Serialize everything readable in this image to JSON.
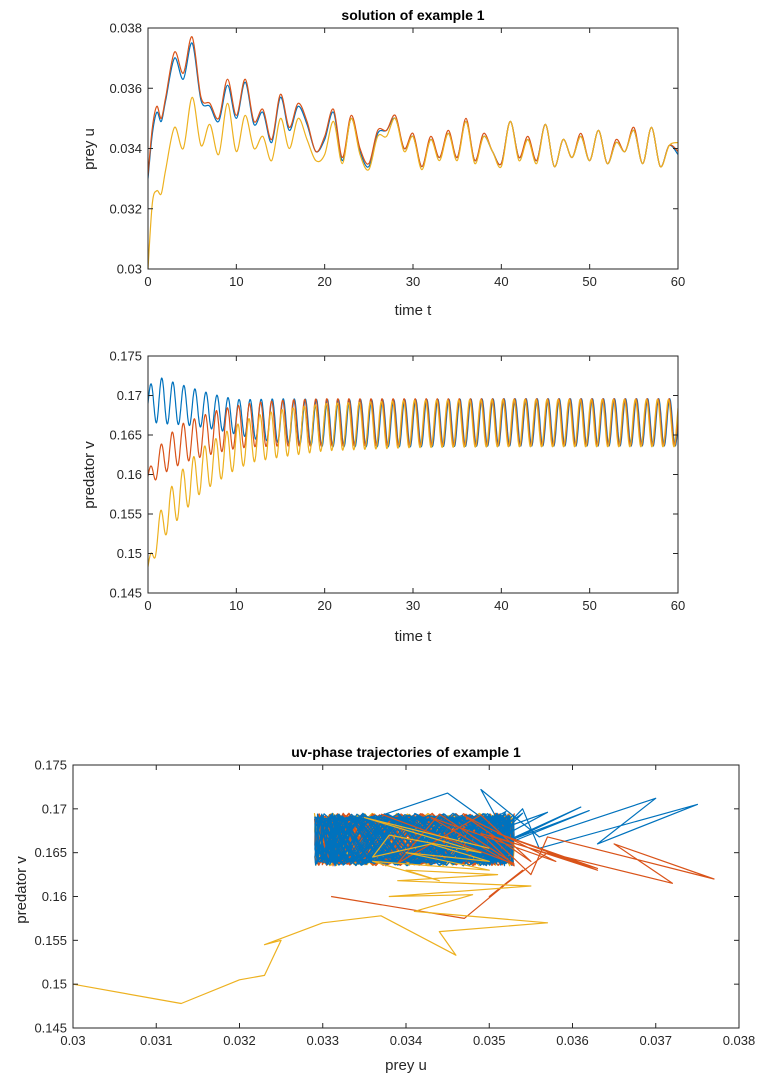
{
  "colors": {
    "series1": "#0072BD",
    "series2": "#D95319",
    "series3": "#EDB120",
    "axis": "#262626"
  },
  "chart_data": [
    {
      "type": "line",
      "title": "solution of example 1",
      "xlabel": "time t",
      "ylabel": "prey u",
      "xlim": [
        0,
        60
      ],
      "ylim": [
        0.03,
        0.038
      ],
      "xticks": [
        "0",
        "10",
        "20",
        "30",
        "40",
        "50",
        "60"
      ],
      "yticks": [
        "0.03",
        "0.032",
        "0.034",
        "0.036",
        "0.038"
      ],
      "grid": false,
      "series": [
        {
          "color": "#0072BD",
          "x": [
            0,
            0.5,
            1,
            1.5,
            2,
            3,
            4,
            5,
            6,
            7,
            8,
            9,
            10,
            11,
            12,
            13,
            14,
            15,
            16,
            17,
            18,
            19,
            20,
            21,
            22,
            23,
            24,
            25,
            26,
            27,
            28,
            29,
            30,
            31,
            32,
            33,
            34,
            35,
            36,
            37,
            38,
            39,
            40,
            41,
            42,
            43,
            44,
            45,
            46,
            47,
            48,
            49,
            50,
            51,
            52,
            53,
            54,
            55,
            56,
            57,
            58,
            59,
            60
          ],
          "y": [
            0.033,
            0.0345,
            0.0352,
            0.0349,
            0.0356,
            0.037,
            0.0363,
            0.0375,
            0.0356,
            0.0354,
            0.0349,
            0.0361,
            0.035,
            0.0362,
            0.0348,
            0.0352,
            0.0342,
            0.0357,
            0.0346,
            0.0354,
            0.0348,
            0.0339,
            0.0343,
            0.0352,
            0.0336,
            0.035,
            0.0339,
            0.0334,
            0.0345,
            0.0346,
            0.035,
            0.034,
            0.0344,
            0.0334,
            0.0343,
            0.0337,
            0.0345,
            0.0337,
            0.0349,
            0.0336,
            0.0344,
            0.0339,
            0.0335,
            0.0349,
            0.0337,
            0.0343,
            0.0336,
            0.0348,
            0.0334,
            0.0343,
            0.0337,
            0.0344,
            0.0336,
            0.0346,
            0.0335,
            0.0342,
            0.0339,
            0.0346,
            0.0335,
            0.0347,
            0.0334,
            0.0341,
            0.0338
          ]
        },
        {
          "color": "#D95319",
          "x": [
            0,
            0.5,
            1,
            1.5,
            2,
            3,
            4,
            5,
            6,
            7,
            8,
            9,
            10,
            11,
            12,
            13,
            14,
            15,
            16,
            17,
            18,
            19,
            20,
            21,
            22,
            23,
            24,
            25,
            26,
            27,
            28,
            29,
            30,
            31,
            32,
            33,
            34,
            35,
            36,
            37,
            38,
            39,
            40,
            41,
            42,
            43,
            44,
            45,
            46,
            47,
            48,
            49,
            50,
            51,
            52,
            53,
            54,
            55,
            56,
            57,
            58,
            59,
            60
          ],
          "y": [
            0.0331,
            0.0347,
            0.0354,
            0.035,
            0.0357,
            0.0372,
            0.0365,
            0.0377,
            0.0357,
            0.0355,
            0.035,
            0.0363,
            0.0351,
            0.0363,
            0.0349,
            0.0353,
            0.0343,
            0.0358,
            0.0347,
            0.0355,
            0.0349,
            0.0339,
            0.0344,
            0.0353,
            0.0337,
            0.0351,
            0.034,
            0.0335,
            0.0346,
            0.0346,
            0.0351,
            0.034,
            0.0345,
            0.0334,
            0.0344,
            0.0337,
            0.0346,
            0.0337,
            0.035,
            0.0336,
            0.0345,
            0.0339,
            0.0335,
            0.0349,
            0.0337,
            0.0344,
            0.0336,
            0.0348,
            0.0334,
            0.0343,
            0.0337,
            0.0345,
            0.0336,
            0.0346,
            0.0335,
            0.0343,
            0.0339,
            0.0347,
            0.0335,
            0.0347,
            0.0334,
            0.0341,
            0.0339
          ]
        },
        {
          "color": "#EDB120",
          "x": [
            0,
            0.5,
            1,
            1.5,
            2,
            3,
            4,
            5,
            6,
            7,
            8,
            9,
            10,
            11,
            12,
            13,
            14,
            15,
            16,
            17,
            18,
            19,
            20,
            21,
            22,
            23,
            24,
            25,
            26,
            27,
            28,
            29,
            30,
            31,
            32,
            33,
            34,
            35,
            36,
            37,
            38,
            39,
            40,
            41,
            42,
            43,
            44,
            45,
            46,
            47,
            48,
            49,
            50,
            51,
            52,
            53,
            54,
            55,
            56,
            57,
            58,
            59,
            60
          ],
          "y": [
            0.03,
            0.0322,
            0.0326,
            0.0325,
            0.0333,
            0.0347,
            0.034,
            0.0357,
            0.0341,
            0.0348,
            0.0338,
            0.0355,
            0.0339,
            0.0351,
            0.034,
            0.0344,
            0.0336,
            0.035,
            0.034,
            0.035,
            0.0343,
            0.0336,
            0.0338,
            0.0349,
            0.0335,
            0.035,
            0.0338,
            0.0333,
            0.0344,
            0.0344,
            0.035,
            0.0339,
            0.0344,
            0.0333,
            0.0343,
            0.0336,
            0.0345,
            0.0336,
            0.0349,
            0.0335,
            0.0344,
            0.0339,
            0.0334,
            0.0349,
            0.0336,
            0.0343,
            0.0335,
            0.0348,
            0.0334,
            0.0343,
            0.0337,
            0.0344,
            0.0336,
            0.0346,
            0.0335,
            0.0342,
            0.0339,
            0.0346,
            0.0335,
            0.0347,
            0.0334,
            0.0341,
            0.0342
          ]
        }
      ]
    },
    {
      "type": "line",
      "title": "",
      "xlabel": "time t",
      "ylabel": "predator v",
      "xlim": [
        0,
        60
      ],
      "ylim": [
        0.145,
        0.175
      ],
      "xticks": [
        "0",
        "10",
        "20",
        "30",
        "40",
        "50",
        "60"
      ],
      "yticks": [
        "0.145",
        "0.15",
        "0.155",
        "0.16",
        "0.165",
        "0.17",
        "0.175"
      ],
      "grid": false,
      "oscillation_period": 1.25,
      "series": [
        {
          "color": "#0072BD",
          "x": [
            0,
            1,
            2,
            4,
            6,
            8,
            10,
            12,
            15,
            20,
            30,
            40,
            50,
            60
          ],
          "center": [
            0.169,
            0.1695,
            0.1692,
            0.1688,
            0.1683,
            0.1678,
            0.1673,
            0.167,
            0.1668,
            0.1665,
            0.1665,
            0.1666,
            0.1666,
            0.1666
          ],
          "amplitude": [
            0.002,
            0.003,
            0.0028,
            0.0025,
            0.0023,
            0.0022,
            0.0022,
            0.0025,
            0.0028,
            0.003,
            0.003,
            0.003,
            0.003,
            0.003
          ]
        },
        {
          "color": "#D95319",
          "x": [
            0,
            1,
            2,
            4,
            6,
            8,
            10,
            12,
            15,
            20,
            30,
            40,
            50,
            60
          ],
          "center": [
            0.1595,
            0.1612,
            0.1625,
            0.164,
            0.1648,
            0.1655,
            0.166,
            0.1663,
            0.1665,
            0.1666,
            0.1666,
            0.1666,
            0.1666,
            0.1666
          ],
          "amplitude": [
            0.0008,
            0.0018,
            0.0022,
            0.0025,
            0.0026,
            0.0027,
            0.0027,
            0.0028,
            0.0029,
            0.003,
            0.003,
            0.003,
            0.003,
            0.003
          ]
        },
        {
          "color": "#EDB120",
          "x": [
            0,
            1,
            2,
            4,
            6,
            8,
            10,
            12,
            15,
            20,
            30,
            40,
            50,
            60
          ],
          "center": [
            0.148,
            0.152,
            0.1548,
            0.158,
            0.1605,
            0.162,
            0.1635,
            0.1645,
            0.1652,
            0.166,
            0.1664,
            0.1665,
            0.1665,
            0.1665
          ],
          "amplitude": [
            0.0005,
            0.002,
            0.0025,
            0.0028,
            0.0028,
            0.0028,
            0.0028,
            0.0029,
            0.003,
            0.003,
            0.003,
            0.003,
            0.003,
            0.003
          ]
        }
      ]
    },
    {
      "type": "line",
      "title": "uv-phase trajectories of example 1",
      "xlabel": "prey  u",
      "ylabel": "predator v",
      "xlim": [
        0.03,
        0.038
      ],
      "ylim": [
        0.145,
        0.175
      ],
      "xticks": [
        "0.03",
        "0.031",
        "0.032",
        "0.033",
        "0.034",
        "0.035",
        "0.036",
        "0.037",
        "0.038"
      ],
      "yticks": [
        "0.145",
        "0.15",
        "0.155",
        "0.16",
        "0.165",
        "0.17",
        "0.175"
      ],
      "grid": false,
      "limit_cycle_region": {
        "u": [
          0.0329,
          0.0353
        ],
        "v": [
          0.1635,
          0.1695
        ]
      },
      "series": [
        {
          "color": "#0072BD",
          "x": [
            0.033,
            0.0345,
            0.0352,
            0.0349,
            0.0356,
            0.037,
            0.0363,
            0.0375,
            0.0356,
            0.0354,
            0.0349,
            0.0361,
            0.035,
            0.0362,
            0.0348,
            0.0352,
            0.0342,
            0.0357,
            0.0346,
            0.0354,
            0.0348,
            0.0339,
            0.0343,
            0.0352,
            0.0336
          ],
          "y": [
            0.167,
            0.1718,
            0.167,
            0.1722,
            0.1668,
            0.1712,
            0.166,
            0.1705,
            0.1655,
            0.17,
            0.165,
            0.1702,
            0.1652,
            0.1698,
            0.1648,
            0.1697,
            0.1645,
            0.1696,
            0.164,
            0.1695,
            0.1638,
            0.1694,
            0.1636,
            0.1694,
            0.164
          ]
        },
        {
          "color": "#D95319",
          "x": [
            0.0331,
            0.0347,
            0.0354,
            0.035,
            0.0357,
            0.0372,
            0.0365,
            0.0377,
            0.0357,
            0.0355,
            0.035,
            0.0363,
            0.0351,
            0.0363,
            0.0349,
            0.0353,
            0.0343,
            0.0358,
            0.0347,
            0.0355,
            0.0349,
            0.0339,
            0.0344,
            0.0353,
            0.0337
          ],
          "y": [
            0.16,
            0.1575,
            0.163,
            0.16,
            0.165,
            0.1615,
            0.166,
            0.162,
            0.1668,
            0.1625,
            0.167,
            0.163,
            0.1672,
            0.1632,
            0.1672,
            0.1635,
            0.169,
            0.164,
            0.1692,
            0.164,
            0.1693,
            0.1638,
            0.1694,
            0.1637,
            0.1694
          ]
        },
        {
          "color": "#EDB120",
          "x": [
            0.03,
            0.0313,
            0.032,
            0.0323,
            0.0325,
            0.0323,
            0.033,
            0.0337,
            0.0346,
            0.0344,
            0.0357,
            0.0341,
            0.0348,
            0.0338,
            0.0355,
            0.0339,
            0.0351,
            0.034,
            0.0344,
            0.0336,
            0.035,
            0.034,
            0.035,
            0.0343,
            0.0336,
            0.0338,
            0.0349,
            0.0335,
            0.035
          ],
          "y": [
            0.15,
            0.1478,
            0.1505,
            0.151,
            0.155,
            0.1545,
            0.157,
            0.1578,
            0.1533,
            0.156,
            0.157,
            0.1583,
            0.1602,
            0.16,
            0.1612,
            0.1618,
            0.1625,
            0.163,
            0.1618,
            0.164,
            0.163,
            0.165,
            0.164,
            0.166,
            0.1645,
            0.167,
            0.165,
            0.169,
            0.1655
          ]
        }
      ]
    }
  ]
}
